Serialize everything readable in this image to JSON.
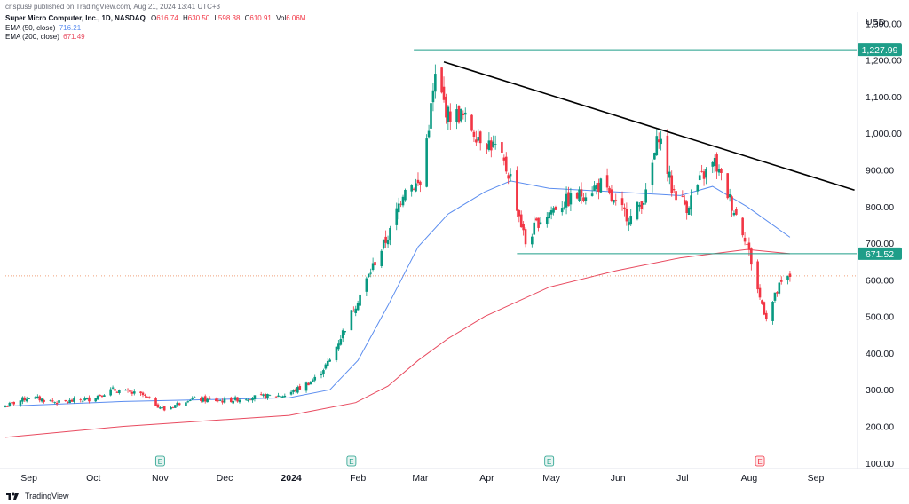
{
  "header": "crispus9 published on TradingView.com, Aug 21, 2024 13:41 UTC+3",
  "legend": {
    "title": "Super Micro Computer, Inc., 1D, NASDAQ",
    "o_label": "O",
    "o": "616.74",
    "h_label": "H",
    "h": "630.50",
    "l_label": "L",
    "l": "598.38",
    "c_label": "C",
    "c": "610.91",
    "vol_label": "Vol",
    "vol": "6.06M",
    "ema50_label": "EMA (50, close)",
    "ema50": "716.21",
    "ema200_label": "EMA (200, close)",
    "ema200": "671.49"
  },
  "footer": {
    "brand": "TradingView"
  },
  "colors": {
    "up": "#089981",
    "down": "#f23645",
    "ema50": "#5b8def",
    "ema200": "#e84a5f",
    "trendline": "#000000",
    "hline": "#1f9e89",
    "tag_green": "#1f9e89",
    "last_price": "#f0a07a"
  },
  "chart_data": {
    "type": "candlestick",
    "symbol": "Super Micro Computer, Inc.",
    "currency": "USD",
    "yaxis": {
      "label": "USD",
      "ticks": [
        "1,300.00",
        "1,200.00",
        "1,100.00",
        "1,000.00",
        "900.00",
        "800.00",
        "700.00",
        "600.00",
        "500.00",
        "400.00",
        "300.00",
        "200.00",
        "100.00"
      ],
      "ylim": [
        85,
        1330
      ]
    },
    "xaxis": {
      "ticks": [
        "Sep",
        "Oct",
        "Nov",
        "Dec",
        "2024",
        "Feb",
        "Mar",
        "Apr",
        "May",
        "Jun",
        "Jul",
        "Aug",
        "Sep"
      ],
      "range": [
        "2023-08-21",
        "2024-09-20"
      ]
    },
    "earnings_markers": [
      {
        "date": "2023-11-01",
        "label": "E",
        "kind": "past"
      },
      {
        "date": "2024-01-29",
        "label": "E",
        "kind": "past"
      },
      {
        "date": "2024-04-30",
        "label": "E",
        "kind": "past"
      },
      {
        "date": "2024-08-06",
        "label": "E",
        "kind": "upcoming"
      }
    ],
    "price_tags": [
      {
        "value": 1227.99,
        "label": "1,227.99"
      },
      {
        "value": 671.52,
        "label": "671.52"
      }
    ],
    "horizontal_lines": [
      {
        "value": 1227.99,
        "from": "2024-02-27",
        "to": "2024-09-20"
      },
      {
        "value": 671.52,
        "from": "2024-04-15",
        "to": "2024-09-20"
      }
    ],
    "trendline": {
      "from": {
        "date": "2024-03-12",
        "value": 1195
      },
      "to": {
        "date": "2024-09-19",
        "value": 845
      }
    },
    "last_price": 610.91,
    "anchors": {
      "close": [
        [
          "2023-08-21",
          255
        ],
        [
          "2023-09-01",
          280
        ],
        [
          "2023-09-15",
          265
        ],
        [
          "2023-09-29",
          275
        ],
        [
          "2023-10-10",
          300
        ],
        [
          "2023-10-24",
          285
        ],
        [
          "2023-11-03",
          245
        ],
        [
          "2023-11-14",
          275
        ],
        [
          "2023-12-01",
          270
        ],
        [
          "2023-12-15",
          280
        ],
        [
          "2023-12-29",
          285
        ],
        [
          "2024-01-05",
          305
        ],
        [
          "2024-01-12",
          330
        ],
        [
          "2024-01-19",
          380
        ],
        [
          "2024-01-26",
          470
        ],
        [
          "2024-02-02",
          560
        ],
        [
          "2024-02-09",
          650
        ],
        [
          "2024-02-16",
          730
        ],
        [
          "2024-02-23",
          860
        ],
        [
          "2024-03-01",
          860
        ],
        [
          "2024-03-08",
          1150
        ],
        [
          "2024-03-14",
          1050
        ],
        [
          "2024-03-20",
          1050
        ],
        [
          "2024-03-27",
          1000
        ],
        [
          "2024-04-05",
          960
        ],
        [
          "2024-04-12",
          880
        ],
        [
          "2024-04-19",
          700
        ],
        [
          "2024-04-25",
          760
        ],
        [
          "2024-05-03",
          800
        ],
        [
          "2024-05-10",
          820
        ],
        [
          "2024-05-24",
          860
        ],
        [
          "2024-05-31",
          800
        ],
        [
          "2024-06-07",
          770
        ],
        [
          "2024-06-14",
          830
        ],
        [
          "2024-06-20",
          1000
        ],
        [
          "2024-06-26",
          850
        ],
        [
          "2024-07-03",
          800
        ],
        [
          "2024-07-10",
          880
        ],
        [
          "2024-07-16",
          920
        ],
        [
          "2024-07-23",
          820
        ],
        [
          "2024-07-30",
          720
        ],
        [
          "2024-08-02",
          650
        ],
        [
          "2024-08-06",
          550
        ],
        [
          "2024-08-09",
          500
        ],
        [
          "2024-08-15",
          580
        ],
        [
          "2024-08-20",
          610.91
        ]
      ],
      "ema50": [
        [
          "2023-08-21",
          255
        ],
        [
          "2023-10-15",
          268
        ],
        [
          "2023-12-31",
          278
        ],
        [
          "2024-01-19",
          300
        ],
        [
          "2024-02-01",
          380
        ],
        [
          "2024-02-15",
          530
        ],
        [
          "2024-02-29",
          690
        ],
        [
          "2024-03-14",
          780
        ],
        [
          "2024-03-31",
          840
        ],
        [
          "2024-04-12",
          870
        ],
        [
          "2024-04-30",
          850
        ],
        [
          "2024-05-31",
          840
        ],
        [
          "2024-06-30",
          830
        ],
        [
          "2024-07-15",
          855
        ],
        [
          "2024-07-31",
          800
        ],
        [
          "2024-08-20",
          716.21
        ]
      ],
      "ema200": [
        [
          "2023-08-21",
          170
        ],
        [
          "2023-10-15",
          200
        ],
        [
          "2023-12-31",
          230
        ],
        [
          "2024-01-31",
          265
        ],
        [
          "2024-02-15",
          310
        ],
        [
          "2024-02-29",
          380
        ],
        [
          "2024-03-14",
          440
        ],
        [
          "2024-03-31",
          500
        ],
        [
          "2024-04-30",
          580
        ],
        [
          "2024-05-31",
          625
        ],
        [
          "2024-06-30",
          660
        ],
        [
          "2024-07-31",
          683
        ],
        [
          "2024-08-20",
          671.49
        ]
      ]
    }
  }
}
